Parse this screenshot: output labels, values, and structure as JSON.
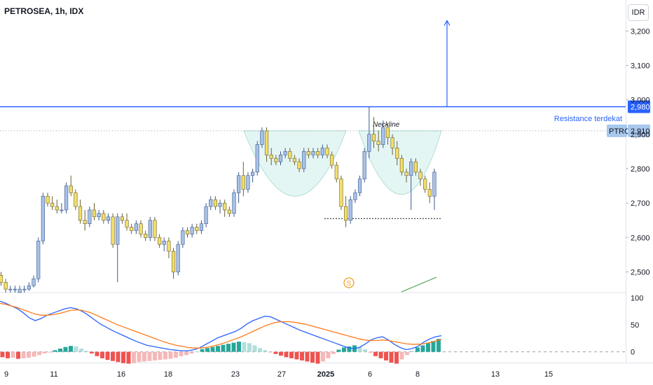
{
  "header": {
    "title": "PETROSEA, 1h, IDX",
    "currency_button": "IDR"
  },
  "colors": {
    "up": "#a8c1e6",
    "up_border": "#3d5a8c",
    "down": "#f2de6a",
    "down_border": "#6b6030",
    "resistance": "#2962ff",
    "macd": "#2962ff",
    "signal": "#ff7a1a",
    "hist_pos": "#26a69a",
    "hist_pos_light": "#b2dfdb",
    "hist_neg": "#ef5350",
    "hist_neg_light": "#f5b8b8",
    "cup": "#e0f5f3",
    "cup_line": "#9fd9d0"
  },
  "chart_data": [
    {
      "type": "candlestick",
      "title": "PETROSEA, 1h, IDX",
      "y_axis_ticks": [
        2500,
        2600,
        2700,
        2800,
        2900,
        3000,
        3100,
        3200
      ],
      "ylim": [
        2440,
        3290
      ],
      "x_tick_labels": [
        "9",
        "11",
        "16",
        "18",
        "23",
        "27",
        "2025",
        "6",
        "8",
        "13",
        "15"
      ],
      "bars_plotted": 94,
      "price_labels": [
        {
          "label": "2,980",
          "value": 2980
        },
        {
          "label": "2,910",
          "value": 2910,
          "tag": "PTRO"
        }
      ],
      "annotations": [
        {
          "text": "Resistance terdekat",
          "value": 2980
        },
        {
          "text": "Neckline",
          "value": 2930
        },
        {
          "text": "S",
          "kind": "split-icon"
        }
      ],
      "support_level": 2655,
      "resistance_level": 2980,
      "target_arrow_value": 3230,
      "candles": [
        [
          2490,
          2500,
          2460,
          2470
        ],
        [
          2470,
          2480,
          2440,
          2450
        ],
        [
          2450,
          2460,
          2440,
          2450
        ],
        [
          2450,
          2460,
          2440,
          2450
        ],
        [
          2440,
          2460,
          2440,
          2450
        ],
        [
          2450,
          2460,
          2440,
          2450
        ],
        [
          2450,
          2470,
          2445,
          2460
        ],
        [
          2460,
          2490,
          2455,
          2480
        ],
        [
          2480,
          2600,
          2470,
          2590
        ],
        [
          2590,
          2730,
          2580,
          2720
        ],
        [
          2720,
          2730,
          2690,
          2700
        ],
        [
          2700,
          2720,
          2680,
          2690
        ],
        [
          2690,
          2710,
          2670,
          2680
        ],
        [
          2680,
          2700,
          2670,
          2680
        ],
        [
          2680,
          2760,
          2670,
          2750
        ],
        [
          2750,
          2780,
          2720,
          2730
        ],
        [
          2730,
          2740,
          2680,
          2690
        ],
        [
          2690,
          2710,
          2640,
          2650
        ],
        [
          2650,
          2680,
          2620,
          2640
        ],
        [
          2640,
          2690,
          2630,
          2680
        ],
        [
          2680,
          2700,
          2650,
          2660
        ],
        [
          2660,
          2680,
          2650,
          2670
        ],
        [
          2670,
          2680,
          2640,
          2650
        ],
        [
          2650,
          2670,
          2640,
          2660
        ],
        [
          2660,
          2670,
          2570,
          2580
        ],
        [
          2580,
          2670,
          2470,
          2660
        ],
        [
          2660,
          2670,
          2640,
          2650
        ],
        [
          2650,
          2670,
          2620,
          2630
        ],
        [
          2630,
          2640,
          2610,
          2620
        ],
        [
          2620,
          2650,
          2610,
          2640
        ],
        [
          2640,
          2650,
          2600,
          2610
        ],
        [
          2610,
          2620,
          2590,
          2600
        ],
        [
          2600,
          2660,
          2590,
          2650
        ],
        [
          2650,
          2660,
          2590,
          2600
        ],
        [
          2600,
          2610,
          2570,
          2580
        ],
        [
          2580,
          2600,
          2560,
          2590
        ],
        [
          2590,
          2600,
          2540,
          2560
        ],
        [
          2560,
          2570,
          2480,
          2500
        ],
        [
          2500,
          2590,
          2490,
          2580
        ],
        [
          2580,
          2630,
          2570,
          2620
        ],
        [
          2620,
          2630,
          2600,
          2610
        ],
        [
          2610,
          2640,
          2600,
          2630
        ],
        [
          2630,
          2640,
          2610,
          2620
        ],
        [
          2620,
          2650,
          2610,
          2640
        ],
        [
          2640,
          2700,
          2630,
          2690
        ],
        [
          2690,
          2720,
          2680,
          2710
        ],
        [
          2710,
          2720,
          2680,
          2690
        ],
        [
          2690,
          2710,
          2670,
          2700
        ],
        [
          2700,
          2710,
          2660,
          2680
        ],
        [
          2680,
          2690,
          2660,
          2670
        ],
        [
          2670,
          2740,
          2660,
          2730
        ],
        [
          2730,
          2790,
          2700,
          2780
        ],
        [
          2780,
          2820,
          2720,
          2740
        ],
        [
          2740,
          2790,
          2730,
          2780
        ],
        [
          2780,
          2800,
          2760,
          2790
        ],
        [
          2790,
          2880,
          2780,
          2870
        ],
        [
          2870,
          2920,
          2860,
          2910
        ],
        [
          2910,
          2920,
          2820,
          2840
        ],
        [
          2840,
          2860,
          2810,
          2830
        ],
        [
          2830,
          2840,
          2810,
          2820
        ],
        [
          2820,
          2850,
          2810,
          2840
        ],
        [
          2840,
          2860,
          2830,
          2850
        ],
        [
          2850,
          2860,
          2820,
          2830
        ],
        [
          2830,
          2840,
          2810,
          2820
        ],
        [
          2820,
          2830,
          2790,
          2800
        ],
        [
          2800,
          2860,
          2790,
          2850
        ],
        [
          2850,
          2860,
          2830,
          2840
        ],
        [
          2840,
          2860,
          2830,
          2850
        ],
        [
          2850,
          2860,
          2830,
          2840
        ],
        [
          2840,
          2870,
          2830,
          2860
        ],
        [
          2860,
          2870,
          2830,
          2840
        ],
        [
          2840,
          2850,
          2800,
          2810
        ],
        [
          2810,
          2820,
          2760,
          2770
        ],
        [
          2770,
          2780,
          2680,
          2690
        ],
        [
          2690,
          2720,
          2630,
          2650
        ],
        [
          2650,
          2720,
          2640,
          2710
        ],
        [
          2710,
          2740,
          2700,
          2730
        ],
        [
          2730,
          2780,
          2720,
          2770
        ],
        [
          2770,
          2860,
          2760,
          2850
        ],
        [
          2850,
          2980,
          2830,
          2900
        ],
        [
          2900,
          2950,
          2860,
          2880
        ],
        [
          2880,
          2910,
          2850,
          2870
        ],
        [
          2870,
          2940,
          2860,
          2920
        ],
        [
          2920,
          2930,
          2870,
          2890
        ],
        [
          2890,
          2900,
          2840,
          2860
        ],
        [
          2860,
          2880,
          2810,
          2830
        ],
        [
          2830,
          2840,
          2780,
          2790
        ],
        [
          2790,
          2800,
          2760,
          2780
        ],
        [
          2780,
          2830,
          2680,
          2820
        ],
        [
          2820,
          2830,
          2780,
          2790
        ],
        [
          2790,
          2800,
          2750,
          2770
        ],
        [
          2770,
          2780,
          2730,
          2740
        ],
        [
          2740,
          2760,
          2700,
          2720
        ],
        [
          2720,
          2800,
          2680,
          2790
        ]
      ]
    },
    {
      "type": "line",
      "title": "",
      "y_axis_ticks": [
        0,
        50,
        100
      ],
      "ylim": [
        -20,
        110
      ],
      "series": [
        {
          "values": [
            94,
            90,
            85,
            80,
            72,
            63,
            58,
            62,
            68,
            72,
            76,
            80,
            82,
            80,
            75,
            68,
            60,
            52,
            46,
            40,
            35,
            30,
            25,
            20,
            16,
            12,
            10,
            8,
            6,
            4,
            3,
            2,
            2,
            4,
            8,
            14,
            20,
            26,
            30,
            34,
            38,
            44,
            52,
            58,
            62,
            66,
            65,
            60,
            55,
            50,
            45,
            40,
            36,
            32,
            28,
            24,
            20,
            16,
            12,
            8,
            6,
            8,
            14,
            22,
            26,
            28,
            22,
            14,
            8,
            4,
            6,
            10,
            18,
            24,
            28,
            30
          ]
        },
        {
          "values": [
            90,
            88,
            85,
            82,
            78,
            74,
            70,
            68,
            68,
            69,
            71,
            74,
            77,
            78,
            77,
            74,
            70,
            65,
            60,
            55,
            50,
            46,
            42,
            38,
            34,
            30,
            26,
            22,
            18,
            15,
            12,
            10,
            8,
            7,
            7,
            8,
            10,
            13,
            16,
            20,
            24,
            28,
            33,
            38,
            43,
            48,
            52,
            55,
            56,
            56,
            55,
            53,
            51,
            48,
            45,
            42,
            39,
            36,
            33,
            30,
            27,
            24,
            22,
            21,
            21,
            22,
            21,
            19,
            17,
            15,
            14,
            14,
            15,
            17,
            20,
            23
          ]
        }
      ],
      "histogram": [
        -10,
        -12,
        -11,
        -13,
        -12,
        -11,
        -9,
        -6,
        -3,
        -1,
        3,
        6,
        9,
        11,
        10,
        6,
        2,
        -3,
        -8,
        -12,
        -15,
        -17,
        -19,
        -21,
        -22,
        -21,
        -19,
        -18,
        -17,
        -16,
        -15,
        -14,
        -13,
        -11,
        -8,
        -6,
        -3,
        1,
        5,
        7,
        9,
        11,
        13,
        15,
        17,
        19,
        18,
        16,
        12,
        7,
        3,
        -1,
        -4,
        -7,
        -10,
        -12,
        -14,
        -16,
        -18,
        -20,
        -22,
        -18,
        -12,
        -4,
        4,
        8,
        10,
        12,
        9,
        5,
        -2,
        -8,
        -12,
        -16,
        -20,
        -22,
        -14,
        -6,
        2,
        8,
        12,
        16,
        20,
        24
      ]
    }
  ]
}
